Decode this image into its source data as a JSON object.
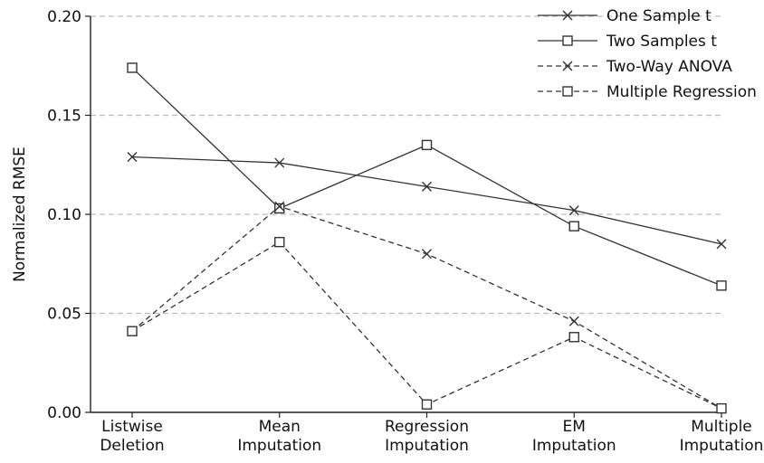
{
  "chart_data": {
    "type": "line",
    "title": "",
    "xlabel": "",
    "ylabel": "Normalized RMSE",
    "categories": [
      [
        "Listwise",
        "Deletion"
      ],
      [
        "Mean",
        "Imputation"
      ],
      [
        "Regression",
        "Imputation"
      ],
      [
        "EM",
        "Imputation"
      ],
      [
        "Multiple",
        "Imputation"
      ]
    ],
    "ylim": [
      0,
      0.2
    ],
    "yticks": [
      "0.00",
      "0.05",
      "0.10",
      "0.15",
      "0.20"
    ],
    "grid": "horizontal dashed",
    "legend_position": "top-right",
    "series": [
      {
        "name": "One Sample t",
        "values": [
          0.129,
          0.126,
          0.114,
          0.102,
          0.085
        ],
        "line": "solid",
        "marker": "x",
        "color": "#333333"
      },
      {
        "name": "Two Samples t",
        "values": [
          0.174,
          0.103,
          0.135,
          0.094,
          0.064
        ],
        "line": "solid",
        "marker": "square",
        "color": "#333333"
      },
      {
        "name": "Two-Way ANOVA",
        "values": [
          0.041,
          0.104,
          0.08,
          0.046,
          0.002
        ],
        "line": "dashed",
        "marker": "x",
        "color": "#333333"
      },
      {
        "name": "Multiple Regression",
        "values": [
          0.041,
          0.086,
          0.004,
          0.038,
          0.002
        ],
        "line": "dashed",
        "marker": "square",
        "color": "#333333"
      }
    ]
  }
}
